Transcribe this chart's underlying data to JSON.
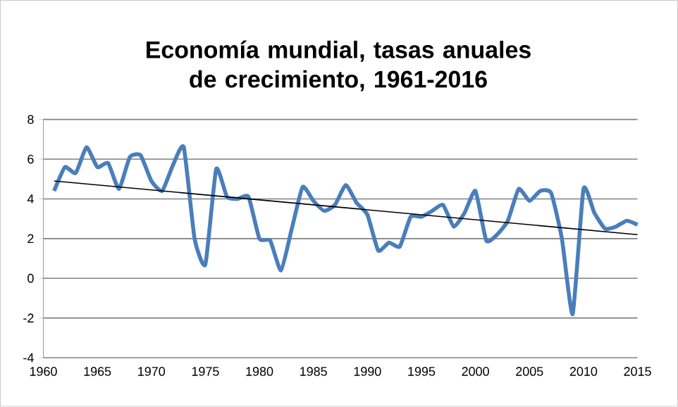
{
  "chart_data": {
    "type": "line",
    "title": "Economía mundial, tasas anuales de crecimiento, 1961-2016",
    "x": [
      1961,
      1962,
      1963,
      1964,
      1965,
      1966,
      1967,
      1968,
      1969,
      1970,
      1971,
      1972,
      1973,
      1974,
      1975,
      1976,
      1977,
      1978,
      1979,
      1980,
      1981,
      1982,
      1983,
      1984,
      1985,
      1986,
      1987,
      1988,
      1989,
      1990,
      1991,
      1992,
      1993,
      1994,
      1995,
      1996,
      1997,
      1998,
      1999,
      2000,
      2001,
      2002,
      2003,
      2004,
      2005,
      2006,
      2007,
      2008,
      2009,
      2010,
      2011,
      2012,
      2013,
      2014,
      2015
    ],
    "series": [
      {
        "color": "#4a7ebb",
        "values": [
          4.4,
          5.6,
          5.3,
          6.6,
          5.6,
          5.8,
          4.5,
          6.1,
          6.2,
          4.9,
          4.4,
          5.7,
          6.6,
          2.0,
          0.7,
          5.5,
          4.1,
          4.0,
          4.1,
          2.0,
          1.9,
          0.4,
          2.5,
          4.6,
          3.9,
          3.4,
          3.7,
          4.7,
          3.8,
          3.2,
          1.4,
          1.8,
          1.6,
          3.1,
          3.1,
          3.4,
          3.7,
          2.6,
          3.3,
          4.4,
          1.9,
          2.2,
          2.9,
          4.5,
          3.9,
          4.4,
          4.3,
          2.0,
          -1.8,
          4.5,
          3.3,
          2.5,
          2.6,
          2.9,
          2.7
        ]
      },
      {
        "type": "line",
        "color": "#000000",
        "x": [
          1961,
          2015
        ],
        "values": [
          4.9,
          2.2
        ]
      }
    ],
    "xlim": [
      1960,
      2015
    ],
    "ylim": [
      -4,
      8
    ],
    "xticks": [
      1960,
      1965,
      1970,
      1975,
      1980,
      1985,
      1990,
      1995,
      2000,
      2005,
      2010,
      2015
    ],
    "yticks": [
      -4,
      -2,
      0,
      2,
      4,
      6,
      8
    ],
    "grid": "y",
    "marker": "none",
    "line_style": "solid"
  }
}
